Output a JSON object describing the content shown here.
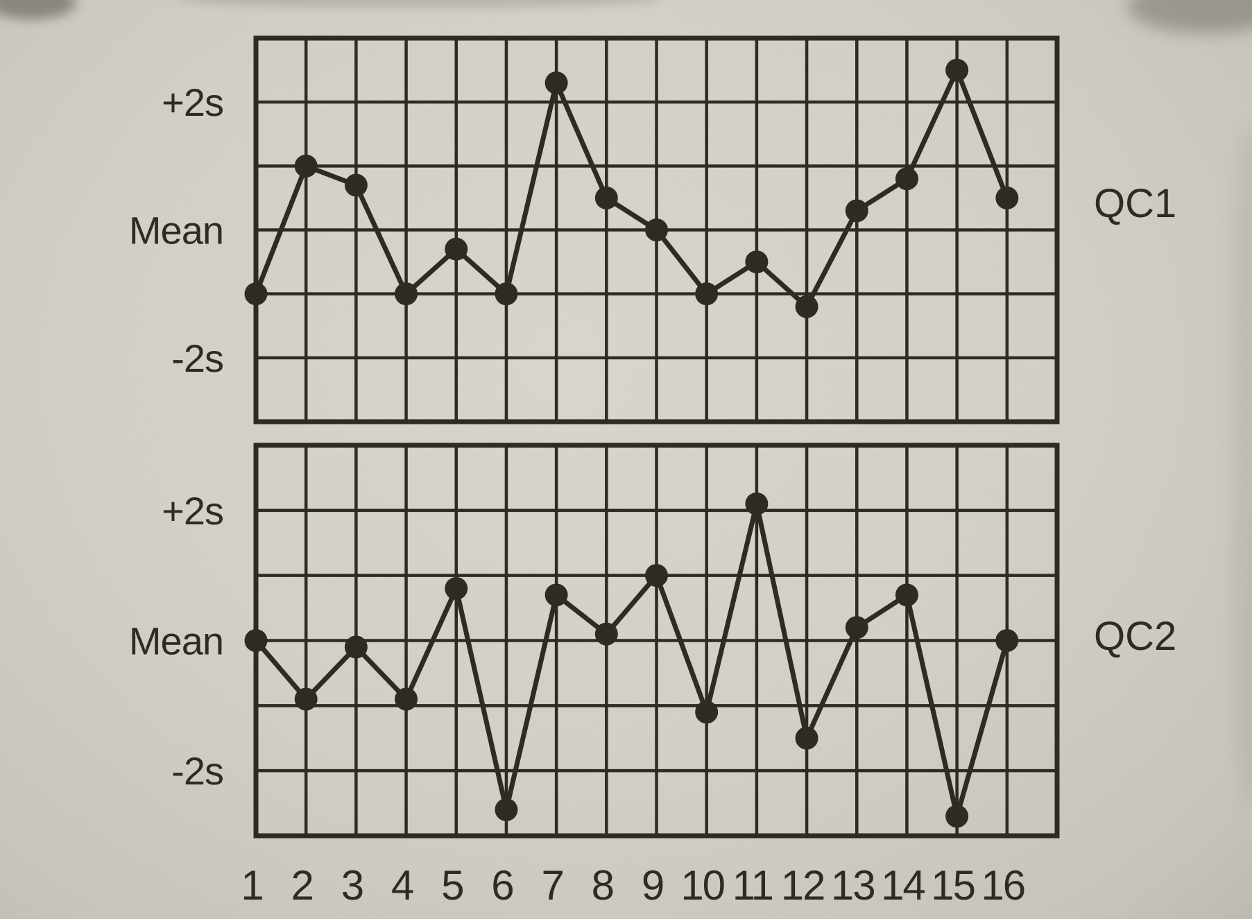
{
  "figure": {
    "description_labels": {
      "x_tick_labels": [
        "1",
        "2",
        "3",
        "4",
        "5",
        "6",
        "7",
        "8",
        "9",
        "10",
        "11",
        "12",
        "13",
        "14",
        "15",
        "16"
      ]
    },
    "paper_color": "#d6d2c9",
    "ink_color": "#2b2620"
  },
  "chart_data": [
    {
      "type": "line",
      "title": "QC1",
      "series_name": "QC1",
      "x": [
        1,
        2,
        3,
        4,
        5,
        6,
        7,
        8,
        9,
        10,
        11,
        12,
        13,
        14,
        15,
        16
      ],
      "values_sd": [
        -1.0,
        1.0,
        0.7,
        -1.0,
        -0.3,
        -1.0,
        2.3,
        0.5,
        0.0,
        -1.0,
        -0.5,
        -1.2,
        0.3,
        0.8,
        2.5,
        0.5
      ],
      "y_tick_labels": [
        "+2s",
        "Mean",
        "-2s"
      ],
      "y_tick_values_sd": [
        2,
        0,
        -2
      ],
      "ylim": [
        -3,
        3
      ],
      "grid": "on",
      "marker": "filled-circle",
      "legend_position": "right"
    },
    {
      "type": "line",
      "title": "QC2",
      "series_name": "QC2",
      "x": [
        1,
        2,
        3,
        4,
        5,
        6,
        7,
        8,
        9,
        10,
        11,
        12,
        13,
        14,
        15,
        16
      ],
      "values_sd": [
        0.0,
        -0.9,
        -0.1,
        -0.9,
        0.8,
        -2.6,
        0.7,
        0.1,
        1.0,
        -1.1,
        2.1,
        -1.5,
        0.2,
        0.7,
        -2.7,
        0.0
      ],
      "y_tick_labels": [
        "+2s",
        "Mean",
        "-2s"
      ],
      "y_tick_values_sd": [
        2,
        0,
        -2
      ],
      "ylim": [
        -3,
        3
      ],
      "grid": "on",
      "marker": "filled-circle",
      "legend_position": "right"
    }
  ]
}
